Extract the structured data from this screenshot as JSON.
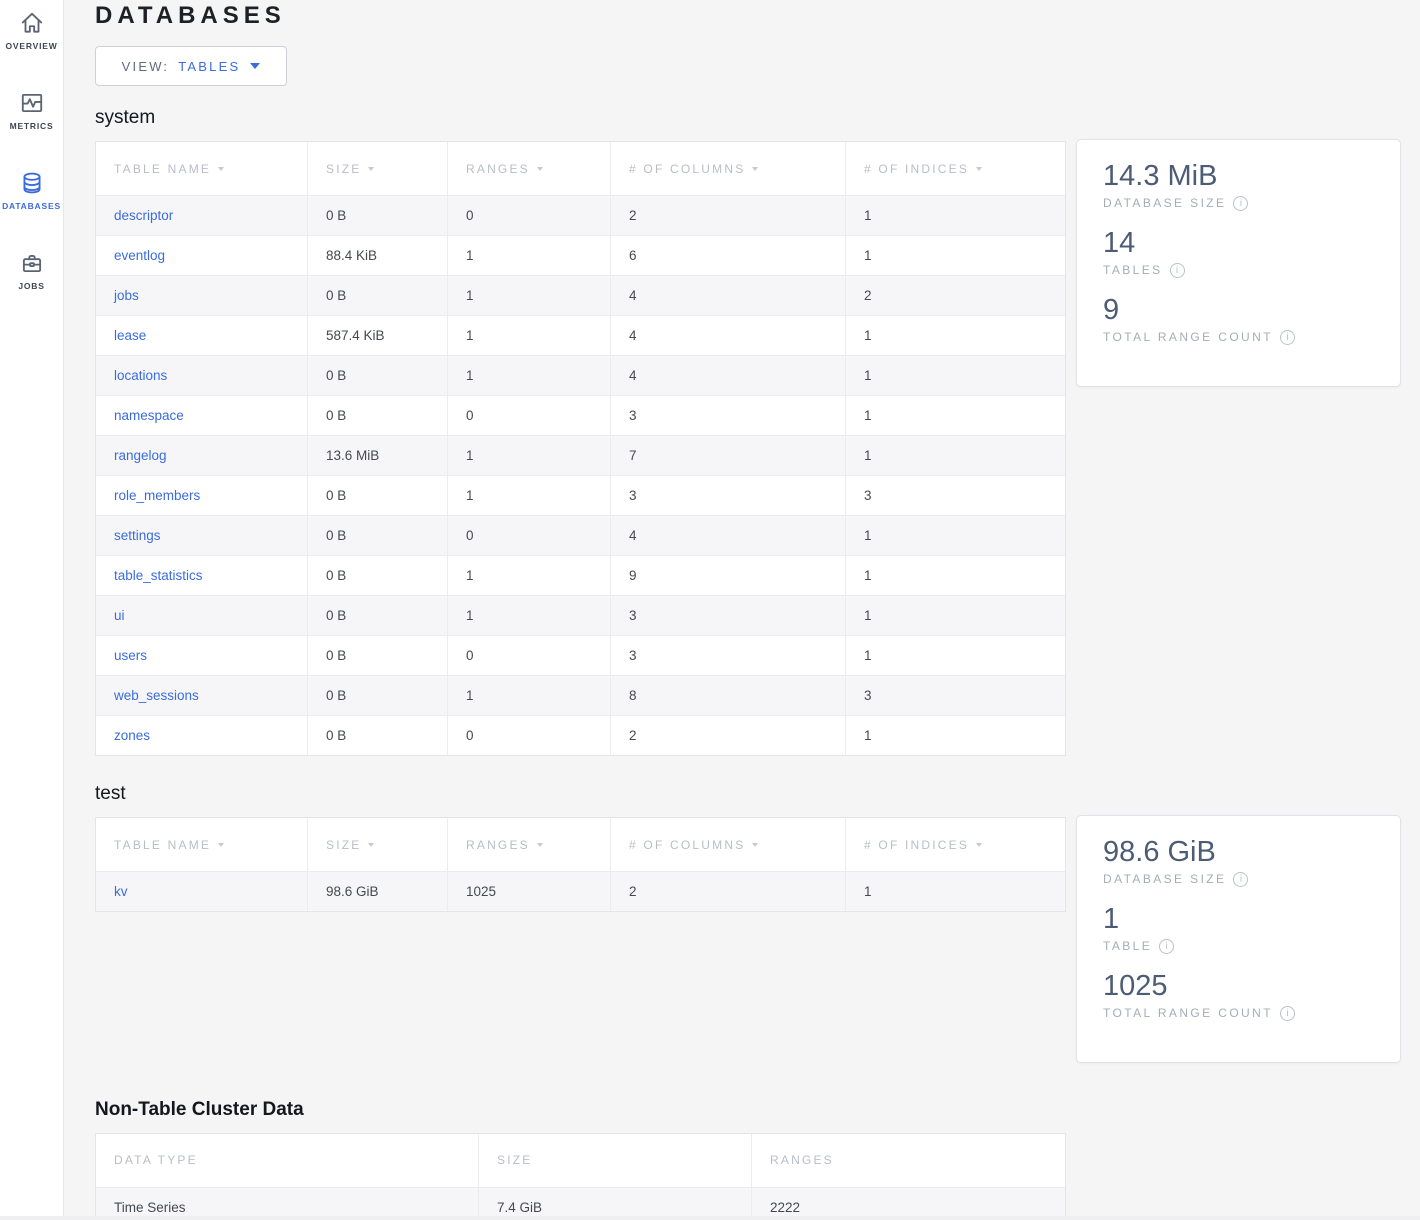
{
  "colors": {
    "accent": "#3b6cdb",
    "stat_value": "#4d5c75",
    "page_background": "#f5f5f6"
  },
  "sidebar": {
    "items": [
      {
        "label": "OVERVIEW",
        "icon": "home-icon",
        "active": false
      },
      {
        "label": "METRICS",
        "icon": "metrics-icon",
        "active": false
      },
      {
        "label": "DATABASES",
        "icon": "database-icon",
        "active": true
      },
      {
        "label": "JOBS",
        "icon": "briefcase-icon",
        "active": false
      }
    ]
  },
  "header": {
    "title": "DATABASES"
  },
  "view_selector": {
    "label": "VIEW:",
    "value": "TABLES"
  },
  "databases": [
    {
      "name": "system",
      "table": {
        "first_col_link": true,
        "columns": [
          {
            "label": "TABLE NAME",
            "sortable": true
          },
          {
            "label": "SIZE",
            "sortable": true
          },
          {
            "label": "RANGES",
            "sortable": true
          },
          {
            "label": "# OF COLUMNS",
            "sortable": true
          },
          {
            "label": "# OF INDICES",
            "sortable": true
          }
        ],
        "rows": [
          [
            "descriptor",
            "0 B",
            "0",
            "2",
            "1"
          ],
          [
            "eventlog",
            "88.4 KiB",
            "1",
            "6",
            "1"
          ],
          [
            "jobs",
            "0 B",
            "1",
            "4",
            "2"
          ],
          [
            "lease",
            "587.4 KiB",
            "1",
            "4",
            "1"
          ],
          [
            "locations",
            "0 B",
            "1",
            "4",
            "1"
          ],
          [
            "namespace",
            "0 B",
            "0",
            "3",
            "1"
          ],
          [
            "rangelog",
            "13.6 MiB",
            "1",
            "7",
            "1"
          ],
          [
            "role_members",
            "0 B",
            "1",
            "3",
            "3"
          ],
          [
            "settings",
            "0 B",
            "0",
            "4",
            "1"
          ],
          [
            "table_statistics",
            "0 B",
            "1",
            "9",
            "1"
          ],
          [
            "ui",
            "0 B",
            "1",
            "3",
            "1"
          ],
          [
            "users",
            "0 B",
            "0",
            "3",
            "1"
          ],
          [
            "web_sessions",
            "0 B",
            "1",
            "8",
            "3"
          ],
          [
            "zones",
            "0 B",
            "0",
            "2",
            "1"
          ]
        ]
      },
      "summary": {
        "stats": [
          {
            "value": "14.3 MiB",
            "label": "DATABASE SIZE"
          },
          {
            "value": "14",
            "label": "TABLES"
          },
          {
            "value": "9",
            "label": "TOTAL RANGE COUNT"
          }
        ]
      }
    },
    {
      "name": "test",
      "table": {
        "first_col_link": true,
        "columns": [
          {
            "label": "TABLE NAME",
            "sortable": true
          },
          {
            "label": "SIZE",
            "sortable": true
          },
          {
            "label": "RANGES",
            "sortable": true
          },
          {
            "label": "# OF COLUMNS",
            "sortable": true
          },
          {
            "label": "# OF INDICES",
            "sortable": true
          }
        ],
        "rows": [
          [
            "kv",
            "98.6 GiB",
            "1025",
            "2",
            "1"
          ]
        ]
      },
      "summary": {
        "stats": [
          {
            "value": "98.6 GiB",
            "label": "DATABASE SIZE"
          },
          {
            "value": "1",
            "label": "TABLE"
          },
          {
            "value": "1025",
            "label": "TOTAL RANGE COUNT"
          }
        ]
      }
    }
  ],
  "non_table": {
    "title": "Non-Table Cluster Data",
    "table": {
      "first_col_link": false,
      "columns": [
        {
          "label": "DATA TYPE",
          "sortable": false
        },
        {
          "label": "SIZE",
          "sortable": false
        },
        {
          "label": "RANGES",
          "sortable": false
        }
      ],
      "rows": [
        [
          "Time Series",
          "7.4 GiB",
          "2222"
        ]
      ]
    }
  }
}
